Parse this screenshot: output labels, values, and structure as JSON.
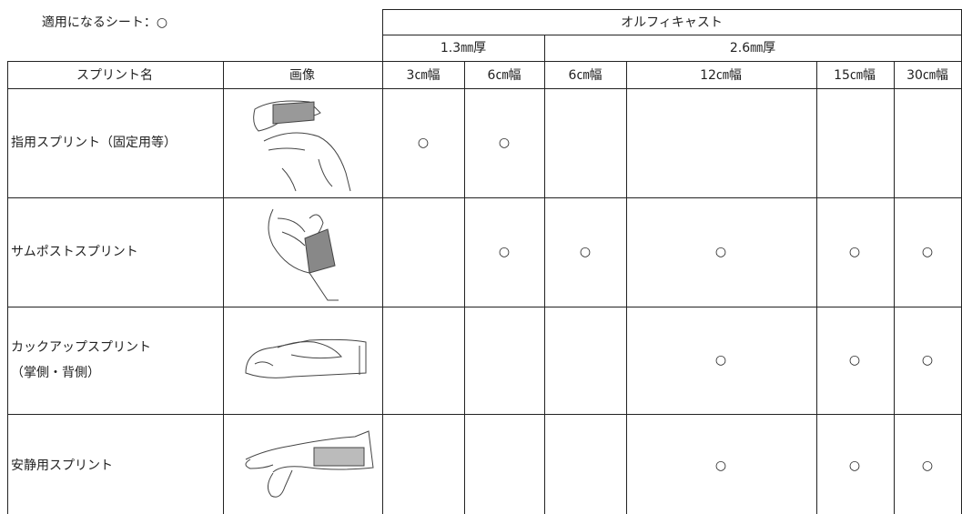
{
  "note": "適用になるシート：○",
  "header": {
    "group": "オルフィキャスト",
    "thickness": [
      "1.3㎜厚",
      "2.6㎜厚"
    ],
    "columns": [
      "スプリント名",
      "画像",
      "3㎝幅",
      "6㎝幅",
      "6㎝幅",
      "12㎝幅",
      "15㎝幅",
      "30㎝幅"
    ]
  },
  "rows": [
    {
      "name": [
        "指用スプリント（固定用等）"
      ],
      "cells": [
        "○",
        "○",
        null,
        null,
        null,
        null
      ]
    },
    {
      "name": [
        "サムポストスプリント"
      ],
      "cells": [
        null,
        "○",
        "○",
        "○",
        "○",
        "○"
      ]
    },
    {
      "name": [
        "カックアップスプリント",
        "（掌側・背側）"
      ],
      "cells": [
        null,
        null,
        null,
        "○",
        "○",
        "○"
      ]
    },
    {
      "name": [
        "安静用スプリント"
      ],
      "cells": [
        null,
        null,
        null,
        "○",
        "○",
        "○"
      ]
    }
  ]
}
